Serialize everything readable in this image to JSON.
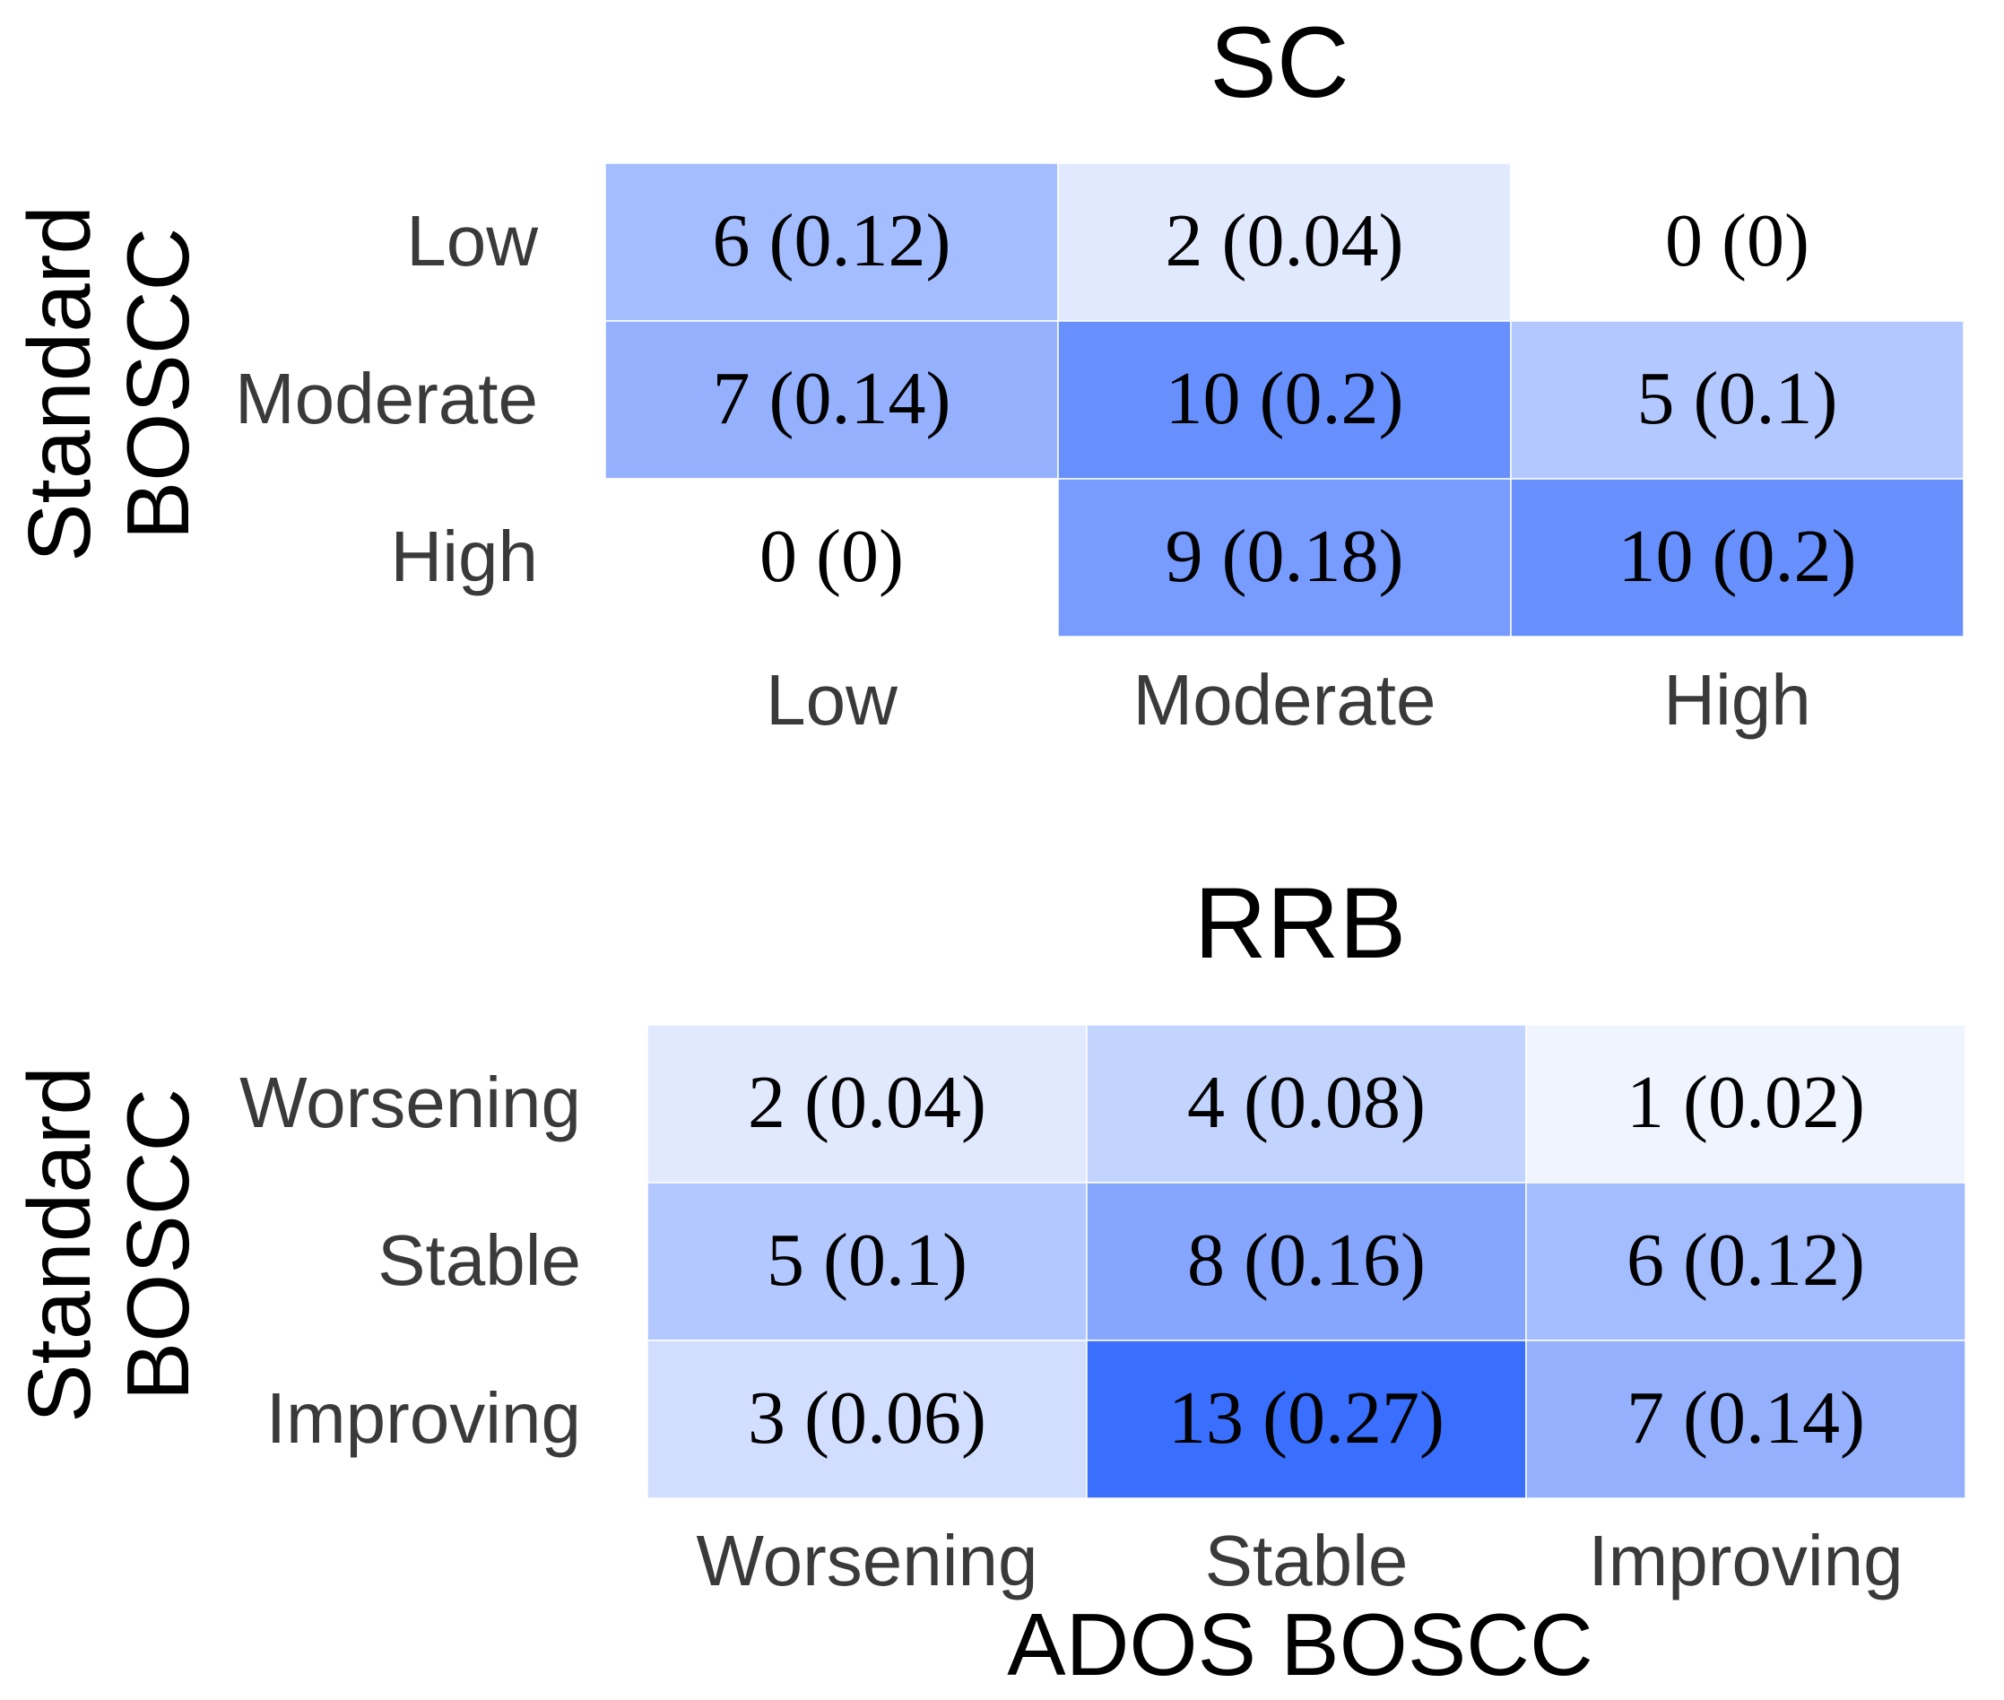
{
  "chart_data": [
    {
      "type": "heatmap",
      "title": "SC",
      "ylabel": [
        "Standard",
        "BOSCC"
      ],
      "xlabel": "",
      "row_labels": [
        "Low",
        "Moderate",
        "High"
      ],
      "col_labels": [
        "Low",
        "Moderate",
        "High"
      ],
      "counts": [
        [
          6,
          2,
          0
        ],
        [
          7,
          10,
          5
        ],
        [
          0,
          9,
          10
        ]
      ],
      "proportions": [
        [
          0.12,
          0.04,
          0
        ],
        [
          0.14,
          0.2,
          0.1
        ],
        [
          0,
          0.18,
          0.2
        ]
      ],
      "cell_text": [
        [
          "6 (0.12)",
          "2 (0.04)",
          "0 (0)"
        ],
        [
          "7 (0.14)",
          "10 (0.2)",
          "5 (0.1)"
        ],
        [
          "0 (0)",
          "9 (0.18)",
          "10 (0.2)"
        ]
      ]
    },
    {
      "type": "heatmap",
      "title": "RRB",
      "ylabel": [
        "Standard",
        "BOSCC"
      ],
      "xlabel": "ADOS BOSCC",
      "row_labels": [
        "Worsening",
        "Stable",
        "Improving"
      ],
      "col_labels": [
        "Worsening",
        "Stable",
        "Improving"
      ],
      "counts": [
        [
          2,
          4,
          1
        ],
        [
          5,
          8,
          6
        ],
        [
          3,
          13,
          7
        ]
      ],
      "proportions": [
        [
          0.04,
          0.08,
          0.02
        ],
        [
          0.1,
          0.16,
          0.12
        ],
        [
          0.06,
          0.27,
          0.14
        ]
      ],
      "cell_text": [
        [
          "2 (0.04)",
          "4 (0.08)",
          "1 (0.02)"
        ],
        [
          "5 (0.1)",
          "8 (0.16)",
          "6 (0.12)"
        ],
        [
          "3 (0.06)",
          "13 (0.27)",
          "7 (0.14)"
        ]
      ]
    }
  ],
  "colors": {
    "scale_low": "#ffffff",
    "scale_high": "#3a6ffd",
    "scale_max_count": 13,
    "tick_text": "#3a3a3a",
    "title_text": "#000000"
  }
}
